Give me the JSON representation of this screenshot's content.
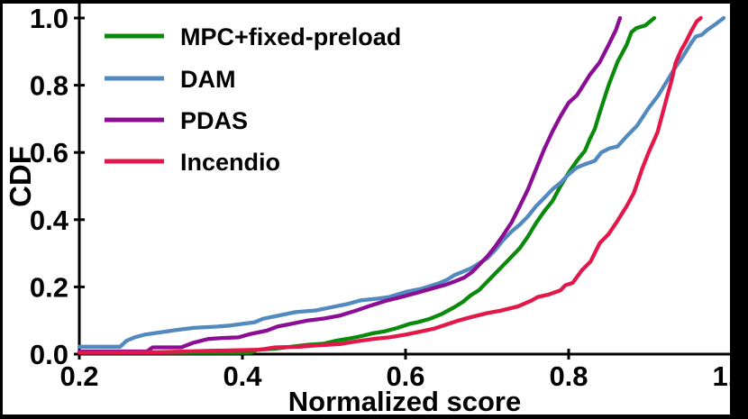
{
  "figure": {
    "background_color": "#000000",
    "panel_color": "#ffffff",
    "axis_color": "#000000",
    "text_color": "#000000"
  },
  "chart_data": {
    "type": "line",
    "subtype": "cdf",
    "title": "",
    "xlabel": "Normalized score",
    "ylabel": "CDF",
    "xlim": [
      0.2,
      1.0
    ],
    "ylim": [
      0.0,
      1.0
    ],
    "grid": false,
    "legend_position": "upper left",
    "x_ticks": [
      0.2,
      0.4,
      0.6,
      0.8,
      1.0
    ],
    "x_tick_labels": [
      "0.2",
      "0.4",
      "0.6",
      "0.8",
      "1.0"
    ],
    "y_ticks": [
      0.0,
      0.2,
      0.4,
      0.6,
      0.8,
      1.0
    ],
    "y_tick_labels": [
      "0.0",
      "0.2",
      "0.4",
      "0.6",
      "0.8",
      "1.0"
    ],
    "series": [
      {
        "name": "MPC+fixed-preload",
        "color": "#0a8a0a",
        "points": [
          [
            0.2,
            0.004
          ],
          [
            0.41,
            0.004
          ],
          [
            0.418,
            0.013
          ],
          [
            0.44,
            0.016
          ],
          [
            0.46,
            0.022
          ],
          [
            0.48,
            0.028
          ],
          [
            0.5,
            0.031
          ],
          [
            0.515,
            0.04
          ],
          [
            0.53,
            0.046
          ],
          [
            0.545,
            0.053
          ],
          [
            0.56,
            0.062
          ],
          [
            0.575,
            0.068
          ],
          [
            0.59,
            0.078
          ],
          [
            0.605,
            0.09
          ],
          [
            0.615,
            0.095
          ],
          [
            0.63,
            0.105
          ],
          [
            0.645,
            0.12
          ],
          [
            0.66,
            0.14
          ],
          [
            0.67,
            0.155
          ],
          [
            0.68,
            0.175
          ],
          [
            0.69,
            0.19
          ],
          [
            0.7,
            0.215
          ],
          [
            0.71,
            0.24
          ],
          [
            0.72,
            0.265
          ],
          [
            0.73,
            0.29
          ],
          [
            0.74,
            0.315
          ],
          [
            0.75,
            0.35
          ],
          [
            0.76,
            0.39
          ],
          [
            0.77,
            0.425
          ],
          [
            0.78,
            0.455
          ],
          [
            0.79,
            0.5
          ],
          [
            0.8,
            0.54
          ],
          [
            0.81,
            0.575
          ],
          [
            0.82,
            0.605
          ],
          [
            0.826,
            0.64
          ],
          [
            0.832,
            0.67
          ],
          [
            0.838,
            0.718
          ],
          [
            0.849,
            0.8
          ],
          [
            0.86,
            0.87
          ],
          [
            0.871,
            0.92
          ],
          [
            0.877,
            0.958
          ],
          [
            0.883,
            0.97
          ],
          [
            0.894,
            0.978
          ],
          [
            0.905,
            1.0
          ]
        ]
      },
      {
        "name": "DAM",
        "color": "#5289be",
        "points": [
          [
            0.2,
            0.022
          ],
          [
            0.25,
            0.022
          ],
          [
            0.258,
            0.04
          ],
          [
            0.268,
            0.05
          ],
          [
            0.28,
            0.058
          ],
          [
            0.3,
            0.065
          ],
          [
            0.32,
            0.072
          ],
          [
            0.34,
            0.078
          ],
          [
            0.37,
            0.082
          ],
          [
            0.385,
            0.085
          ],
          [
            0.4,
            0.09
          ],
          [
            0.415,
            0.095
          ],
          [
            0.425,
            0.105
          ],
          [
            0.445,
            0.115
          ],
          [
            0.465,
            0.125
          ],
          [
            0.49,
            0.13
          ],
          [
            0.51,
            0.14
          ],
          [
            0.53,
            0.15
          ],
          [
            0.545,
            0.16
          ],
          [
            0.565,
            0.165
          ],
          [
            0.58,
            0.17
          ],
          [
            0.6,
            0.185
          ],
          [
            0.62,
            0.195
          ],
          [
            0.64,
            0.21
          ],
          [
            0.65,
            0.22
          ],
          [
            0.66,
            0.235
          ],
          [
            0.67,
            0.245
          ],
          [
            0.68,
            0.255
          ],
          [
            0.69,
            0.27
          ],
          [
            0.7,
            0.285
          ],
          [
            0.71,
            0.31
          ],
          [
            0.72,
            0.34
          ],
          [
            0.73,
            0.365
          ],
          [
            0.74,
            0.385
          ],
          [
            0.75,
            0.41
          ],
          [
            0.76,
            0.44
          ],
          [
            0.77,
            0.465
          ],
          [
            0.78,
            0.49
          ],
          [
            0.79,
            0.51
          ],
          [
            0.8,
            0.535
          ],
          [
            0.81,
            0.555
          ],
          [
            0.82,
            0.565
          ],
          [
            0.832,
            0.575
          ],
          [
            0.84,
            0.6
          ],
          [
            0.85,
            0.612
          ],
          [
            0.86,
            0.618
          ],
          [
            0.87,
            0.645
          ],
          [
            0.884,
            0.68
          ],
          [
            0.898,
            0.732
          ],
          [
            0.91,
            0.77
          ],
          [
            0.92,
            0.81
          ],
          [
            0.93,
            0.85
          ],
          [
            0.94,
            0.885
          ],
          [
            0.95,
            0.925
          ],
          [
            0.956,
            0.945
          ],
          [
            0.963,
            0.95
          ],
          [
            0.97,
            0.965
          ],
          [
            0.978,
            0.978
          ],
          [
            0.99,
            1.0
          ]
        ]
      },
      {
        "name": "PDAS",
        "color": "#8b0d93",
        "points": [
          [
            0.2,
            0.008
          ],
          [
            0.283,
            0.008
          ],
          [
            0.29,
            0.02
          ],
          [
            0.325,
            0.02
          ],
          [
            0.34,
            0.034
          ],
          [
            0.358,
            0.045
          ],
          [
            0.375,
            0.048
          ],
          [
            0.395,
            0.05
          ],
          [
            0.41,
            0.06
          ],
          [
            0.43,
            0.07
          ],
          [
            0.443,
            0.082
          ],
          [
            0.46,
            0.09
          ],
          [
            0.48,
            0.1
          ],
          [
            0.5,
            0.106
          ],
          [
            0.52,
            0.115
          ],
          [
            0.54,
            0.13
          ],
          [
            0.558,
            0.145
          ],
          [
            0.575,
            0.158
          ],
          [
            0.595,
            0.17
          ],
          [
            0.615,
            0.183
          ],
          [
            0.635,
            0.197
          ],
          [
            0.65,
            0.207
          ],
          [
            0.662,
            0.218
          ],
          [
            0.672,
            0.228
          ],
          [
            0.682,
            0.245
          ],
          [
            0.69,
            0.265
          ],
          [
            0.7,
            0.29
          ],
          [
            0.71,
            0.32
          ],
          [
            0.72,
            0.355
          ],
          [
            0.73,
            0.392
          ],
          [
            0.74,
            0.44
          ],
          [
            0.75,
            0.49
          ],
          [
            0.76,
            0.55
          ],
          [
            0.77,
            0.61
          ],
          [
            0.78,
            0.662
          ],
          [
            0.79,
            0.708
          ],
          [
            0.8,
            0.748
          ],
          [
            0.81,
            0.77
          ],
          [
            0.818,
            0.8
          ],
          [
            0.826,
            0.831
          ],
          [
            0.838,
            0.868
          ],
          [
            0.849,
            0.92
          ],
          [
            0.858,
            0.965
          ],
          [
            0.863,
            1.0
          ]
        ]
      },
      {
        "name": "Incendio",
        "color": "#e2174a",
        "points": [
          [
            0.2,
            0.004
          ],
          [
            0.3,
            0.006
          ],
          [
            0.36,
            0.01
          ],
          [
            0.42,
            0.013
          ],
          [
            0.44,
            0.02
          ],
          [
            0.47,
            0.022
          ],
          [
            0.49,
            0.026
          ],
          [
            0.52,
            0.03
          ],
          [
            0.54,
            0.038
          ],
          [
            0.56,
            0.045
          ],
          [
            0.58,
            0.05
          ],
          [
            0.6,
            0.058
          ],
          [
            0.62,
            0.068
          ],
          [
            0.635,
            0.076
          ],
          [
            0.65,
            0.088
          ],
          [
            0.665,
            0.1
          ],
          [
            0.68,
            0.11
          ],
          [
            0.7,
            0.122
          ],
          [
            0.716,
            0.129
          ],
          [
            0.738,
            0.142
          ],
          [
            0.755,
            0.16
          ],
          [
            0.762,
            0.17
          ],
          [
            0.775,
            0.177
          ],
          [
            0.79,
            0.19
          ],
          [
            0.796,
            0.205
          ],
          [
            0.805,
            0.212
          ],
          [
            0.816,
            0.249
          ],
          [
            0.827,
            0.276
          ],
          [
            0.838,
            0.33
          ],
          [
            0.849,
            0.357
          ],
          [
            0.86,
            0.397
          ],
          [
            0.871,
            0.44
          ],
          [
            0.88,
            0.48
          ],
          [
            0.89,
            0.55
          ],
          [
            0.898,
            0.6
          ],
          [
            0.909,
            0.66
          ],
          [
            0.92,
            0.76
          ],
          [
            0.926,
            0.812
          ],
          [
            0.931,
            0.866
          ],
          [
            0.938,
            0.905
          ],
          [
            0.944,
            0.93
          ],
          [
            0.95,
            0.96
          ],
          [
            0.957,
            0.99
          ],
          [
            0.962,
            1.0
          ]
        ]
      }
    ]
  }
}
